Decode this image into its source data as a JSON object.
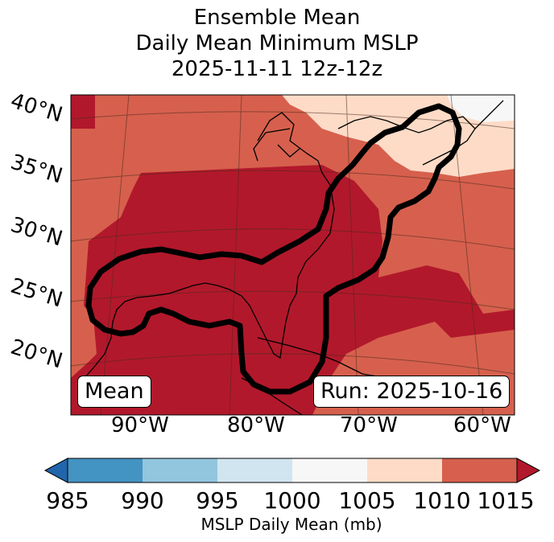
{
  "title": {
    "line1": "Ensemble Mean",
    "line2": "Daily Mean Minimum MSLP",
    "line3": "2025-11-11 12z-12z"
  },
  "map": {
    "lat_labels": [
      "40°N",
      "35°N",
      "30°N",
      "25°N",
      "20°N"
    ],
    "lon_labels": [
      "90°W",
      "80°W",
      "70°W",
      "60°W"
    ],
    "mean_box": "Mean",
    "run_box": "Run: 2025-10-16"
  },
  "colorbar": {
    "ticks": [
      "985",
      "990",
      "995",
      "1000",
      "1005",
      "1010",
      "1015"
    ],
    "label": "MSLP Daily Mean (mb)",
    "colors": {
      "below": "#2166ac",
      "985_990": "#4393c3",
      "990_995": "#92c5de",
      "995_1000": "#d1e5f0",
      "1000_1005": "#f7f7f7",
      "1005_1010": "#fddbc7",
      "1010_1015": "#d6604d",
      "above": "#b2182b"
    }
  }
}
